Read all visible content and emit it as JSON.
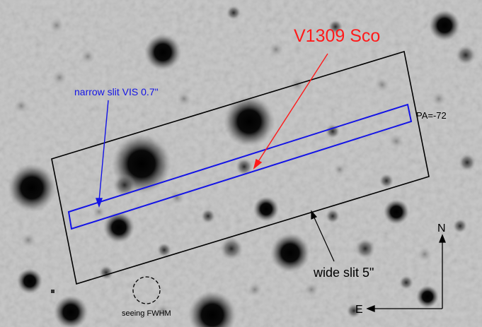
{
  "target": {
    "label": "V1309 Sco",
    "color": "#ff1a1a"
  },
  "narrow_slit": {
    "label": "narrow slit VIS 0.7\"",
    "color": "#1414e6"
  },
  "wide_slit": {
    "label": "wide slit 5\"",
    "color": "#000000"
  },
  "position_angle": {
    "label": "PA=-72"
  },
  "seeing": {
    "label": "seeing FWHM"
  },
  "compass": {
    "north": "N",
    "east": "E"
  },
  "colors": {
    "sky": "#c9c9c9",
    "star": "#000000",
    "annotation": "#000000"
  }
}
